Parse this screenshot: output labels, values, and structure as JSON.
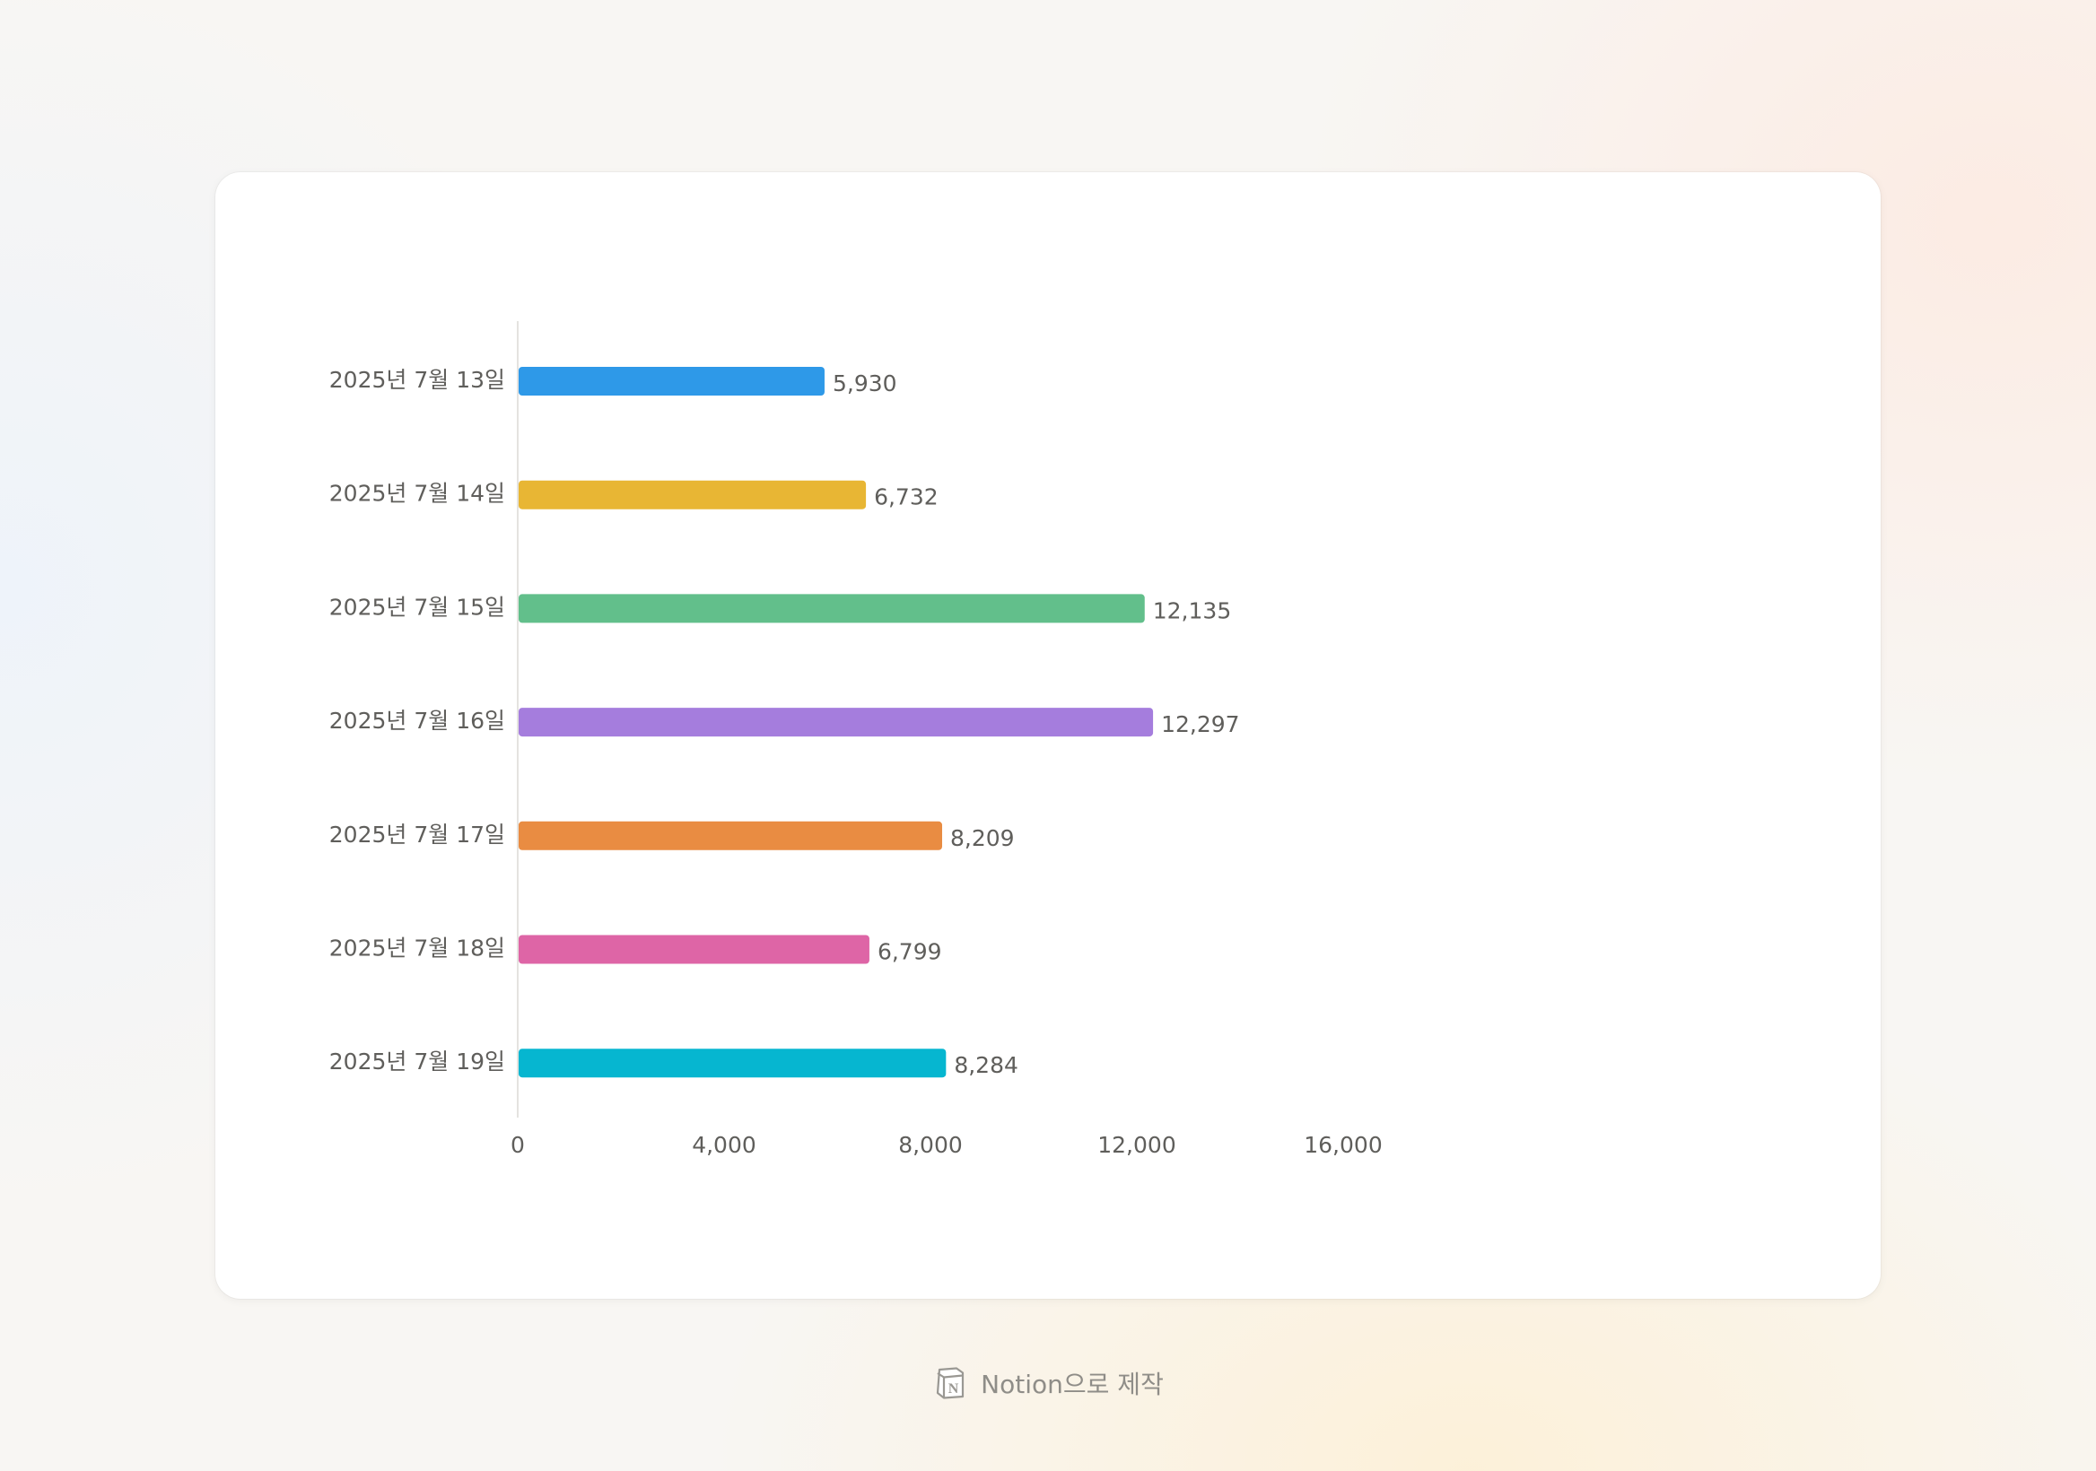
{
  "chart_data": {
    "type": "bar",
    "orientation": "horizontal",
    "categories": [
      "2025년 7월 13일",
      "2025년 7월 14일",
      "2025년 7월 15일",
      "2025년 7월 16일",
      "2025년 7월 17일",
      "2025년 7월 18일",
      "2025년 7월 19일"
    ],
    "values": [
      5930,
      6732,
      12135,
      12297,
      8209,
      6799,
      8284
    ],
    "value_labels": [
      "5,930",
      "6,732",
      "12,135",
      "12,297",
      "8,209",
      "6,799",
      "8,284"
    ],
    "colors": [
      "#2e99e8",
      "#e8b634",
      "#62bf8b",
      "#a57ddd",
      "#e98c42",
      "#de65a6",
      "#06b6d0"
    ],
    "xlim": [
      0,
      16000
    ],
    "x_ticks": [
      0,
      4000,
      8000,
      12000,
      16000
    ],
    "x_tick_labels": [
      "0",
      "4,000",
      "8,000",
      "12,000",
      "16,000"
    ],
    "grid": false,
    "legend": "none"
  },
  "footer": {
    "icon": "notion-logo-icon",
    "text": "Notion으로 제작"
  }
}
